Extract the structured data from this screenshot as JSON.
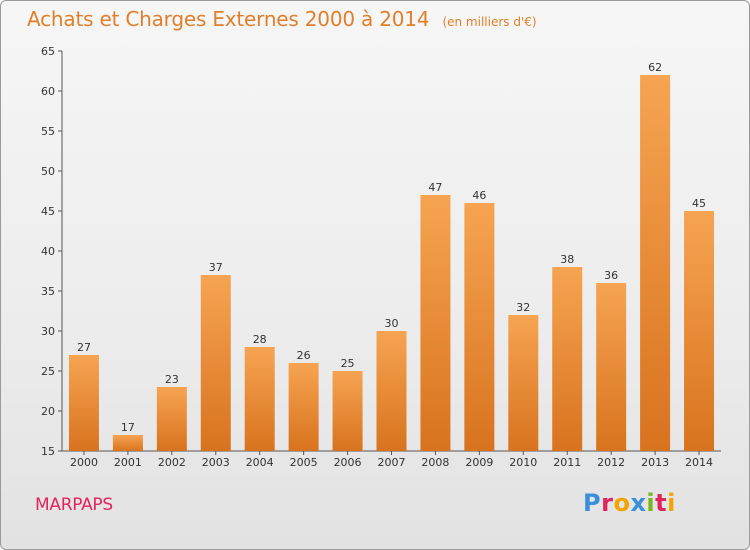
{
  "chart_data": {
    "type": "bar",
    "title": "Achats et Charges Externes 2000 à 2014",
    "subtitle": "(en milliers d'€)",
    "categories": [
      "2000",
      "2001",
      "2002",
      "2003",
      "2004",
      "2005",
      "2006",
      "2007",
      "2008",
      "2009",
      "2010",
      "2011",
      "2012",
      "2013",
      "2014"
    ],
    "values": [
      27,
      17,
      23,
      37,
      28,
      26,
      25,
      30,
      47,
      46,
      32,
      38,
      36,
      62,
      45
    ],
    "ylim": [
      15,
      65
    ],
    "yticks": [
      15,
      20,
      25,
      30,
      35,
      40,
      45,
      50,
      55,
      60,
      65
    ],
    "grid": false,
    "bar_color": "#f0913a",
    "data_labels": true
  },
  "commune": "MARPAPS",
  "logo": {
    "letters": [
      "P",
      "r",
      "o",
      "x",
      "i",
      "t",
      "i"
    ],
    "colors": [
      "#3a8fd8",
      "#e0245e",
      "#f5a300",
      "#3a8fd8",
      "#7ab51d",
      "#e0245e",
      "#f5a300"
    ]
  }
}
